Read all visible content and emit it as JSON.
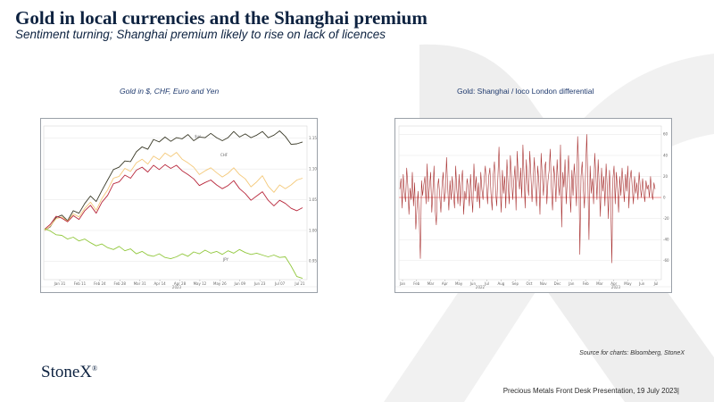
{
  "slide": {
    "title": "Gold in local currencies and the Shanghai premium",
    "subtitle": "Sentiment turning; Shanghai premium likely to rise on lack of licences",
    "source": "Source for charts: Bloomberg, StoneX",
    "logo": "StoneX",
    "logo_mark": "®",
    "footer": "Precious Metals Front Desk Presentation, 19 July 2023|"
  },
  "colors": {
    "title": "#0d2240",
    "usd": "#3a3a28",
    "chf": "#f4c97a",
    "eur": "#b8283c",
    "jpy": "#92c83e",
    "premium": "#a83232",
    "zero_line": "#f08a8a"
  },
  "chart_data": [
    {
      "type": "line",
      "title": "Gold in $, CHF, Euro and Yen",
      "x_tick_labels": [
        "Jan 31",
        "Feb 11",
        "Feb 24",
        "Feb 28",
        "Mar 31",
        "Apr 14",
        "Apr 28",
        "May 12",
        "May 26",
        "Jun 09",
        "Jun 23",
        "Jul 07",
        "Jul 21"
      ],
      "year_label": "2023",
      "y_tick_labels": [
        "1.15",
        "1.10",
        "1.05",
        "1.00",
        "0.95"
      ],
      "ylim": [
        0.92,
        1.17
      ],
      "series_labels": {
        "usd": "$us",
        "chf": "CHF",
        "jpy": "JPY"
      },
      "footnote": "",
      "series": [
        {
          "key": "usd",
          "values": [
            1.0,
            1.006,
            1.021,
            1.025,
            1.016,
            1.032,
            1.028,
            1.044,
            1.056,
            1.047,
            1.065,
            1.082,
            1.099,
            1.103,
            1.113,
            1.112,
            1.128,
            1.136,
            1.132,
            1.148,
            1.144,
            1.152,
            1.145,
            1.151,
            1.149,
            1.156,
            1.146,
            1.152,
            1.151,
            1.158,
            1.151,
            1.146,
            1.151,
            1.161,
            1.152,
            1.157,
            1.151,
            1.155,
            1.161,
            1.151,
            1.155,
            1.162,
            1.153,
            1.14,
            1.141,
            1.144
          ]
        },
        {
          "key": "chf",
          "values": [
            1.0,
            1.007,
            1.019,
            1.022,
            1.015,
            1.027,
            1.022,
            1.036,
            1.046,
            1.033,
            1.052,
            1.066,
            1.085,
            1.088,
            1.101,
            1.096,
            1.11,
            1.116,
            1.108,
            1.121,
            1.115,
            1.126,
            1.12,
            1.127,
            1.116,
            1.11,
            1.103,
            1.091,
            1.097,
            1.102,
            1.094,
            1.087,
            1.093,
            1.102,
            1.091,
            1.084,
            1.071,
            1.079,
            1.089,
            1.072,
            1.062,
            1.074,
            1.068,
            1.074,
            1.082,
            1.085
          ]
        },
        {
          "key": "eur",
          "values": [
            1.002,
            1.01,
            1.023,
            1.02,
            1.014,
            1.024,
            1.018,
            1.032,
            1.041,
            1.028,
            1.046,
            1.057,
            1.076,
            1.079,
            1.09,
            1.085,
            1.098,
            1.103,
            1.095,
            1.106,
            1.099,
            1.107,
            1.101,
            1.106,
            1.097,
            1.091,
            1.084,
            1.073,
            1.078,
            1.082,
            1.074,
            1.068,
            1.073,
            1.081,
            1.068,
            1.06,
            1.049,
            1.056,
            1.063,
            1.049,
            1.04,
            1.049,
            1.044,
            1.036,
            1.032,
            1.037
          ]
        },
        {
          "key": "jpy",
          "values": [
            1.003,
            0.999,
            0.993,
            0.992,
            0.986,
            0.989,
            0.983,
            0.986,
            0.98,
            0.975,
            0.978,
            0.972,
            0.969,
            0.974,
            0.967,
            0.97,
            0.962,
            0.966,
            0.96,
            0.958,
            0.962,
            0.956,
            0.954,
            0.957,
            0.962,
            0.958,
            0.965,
            0.962,
            0.968,
            0.963,
            0.966,
            0.961,
            0.967,
            0.963,
            0.969,
            0.964,
            0.961,
            0.963,
            0.96,
            0.957,
            0.96,
            0.956,
            0.957,
            0.942,
            0.925,
            0.922
          ]
        }
      ]
    },
    {
      "type": "line",
      "title": "Gold: Shanghai / loco London differential",
      "x_tick_labels": [
        "Jan",
        "Feb",
        "Mar",
        "Apr",
        "May",
        "Jun",
        "Jul",
        "Aug",
        "Sep",
        "Oct",
        "Nov",
        "Dec",
        "Jan",
        "Feb",
        "Mar",
        "Apr",
        "May",
        "Jun",
        "Jul"
      ],
      "year_labels": [
        "2022",
        "2023"
      ],
      "y_tick_labels": [
        "60",
        "40",
        "20",
        "0",
        "-20",
        "-40",
        "-60"
      ],
      "ylim": [
        -78,
        68
      ],
      "footnote": "",
      "series": [
        {
          "key": "premium",
          "values": [
            8,
            18,
            -10,
            22,
            5,
            -4,
            28,
            12,
            -16,
            9,
            -2,
            24,
            -8,
            14,
            -30,
            -10,
            6,
            -20,
            -58,
            16,
            2,
            12,
            20,
            -6,
            32,
            -4,
            10,
            24,
            -14,
            5,
            30,
            -12,
            -26,
            8,
            18,
            2,
            -14,
            10,
            24,
            -4,
            5,
            38,
            10,
            -12,
            16,
            -2,
            20,
            4,
            -10,
            30,
            8,
            -6,
            22,
            -8,
            14,
            26,
            -16,
            6,
            -2,
            18,
            10,
            -8,
            22,
            2,
            -14,
            32,
            6,
            20,
            -4,
            14,
            -10,
            24,
            8,
            -2,
            18,
            30,
            12,
            -6,
            20,
            28,
            4,
            -12,
            22,
            34,
            6,
            -8,
            18,
            48,
            10,
            -14,
            26,
            4,
            20,
            -10,
            36,
            12,
            -6,
            40,
            22,
            -2,
            16,
            30,
            -12,
            44,
            18,
            8,
            28,
            0,
            50,
            20,
            -10,
            36,
            14,
            2,
            44,
            22,
            -4,
            18,
            38,
            10,
            -8,
            30,
            14,
            -16,
            42,
            20,
            2,
            28,
            34,
            -6,
            16,
            26,
            46,
            8,
            -12,
            30,
            20,
            -4,
            36,
            14,
            2,
            50,
            -28,
            24,
            10,
            36,
            -6,
            18,
            40,
            12,
            -14,
            26,
            2,
            32,
            16,
            -8,
            58,
            28,
            -54,
            20,
            34,
            8,
            -10,
            24,
            60,
            14,
            -40,
            30,
            4,
            18,
            -6,
            42,
            22,
            -2,
            36,
            12,
            -18,
            28,
            6,
            20,
            -8,
            32,
            10,
            -20,
            26,
            4,
            -62,
            18,
            30,
            -6,
            24,
            8,
            -14,
            20,
            2,
            28,
            12,
            -4,
            22,
            6,
            30,
            -10,
            18,
            26,
            8,
            -6,
            20,
            4,
            14,
            -2,
            24,
            10,
            0,
            18,
            6,
            -4,
            16,
            8,
            12,
            0,
            20,
            4,
            -2,
            14,
            8
          ]
        }
      ]
    }
  ]
}
